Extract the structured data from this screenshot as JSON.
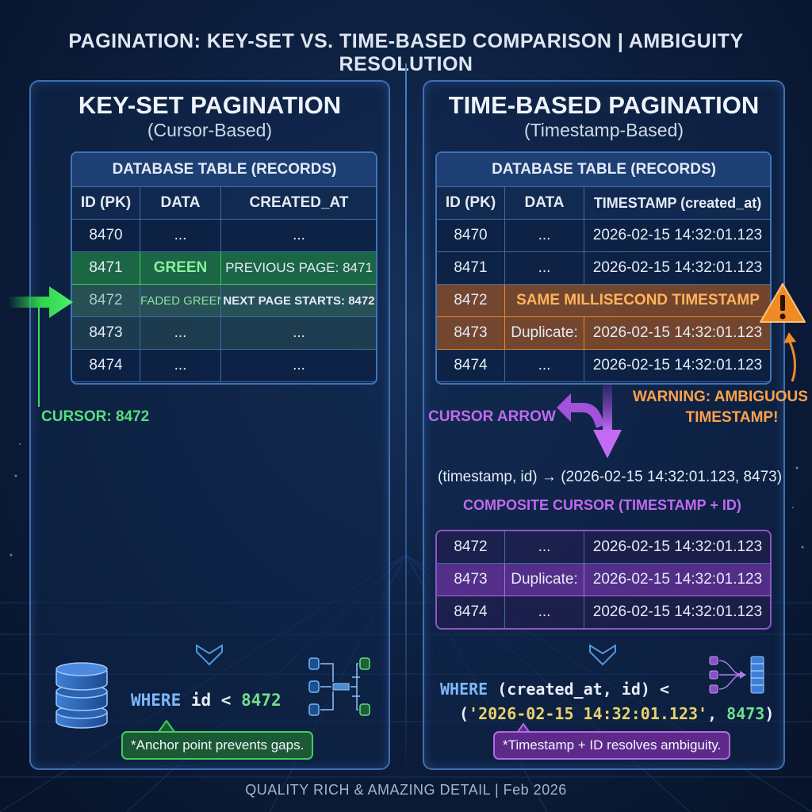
{
  "title": "PAGINATION: KEY-SET VS. TIME-BASED COMPARISON | AMBIGUITY RESOLUTION",
  "left": {
    "title": "KEY-SET PAGINATION",
    "subtitle": "(Cursor-Based)",
    "table_caption": "DATABASE TABLE (RECORDS)",
    "columns": [
      "ID (PK)",
      "DATA",
      "CREATED_AT"
    ],
    "rows": [
      [
        "8470",
        "...",
        "..."
      ],
      [
        "8471",
        "GREEN",
        "PREVIOUS PAGE: 8471"
      ],
      [
        "8472",
        "FADED GREEN",
        "NEXT PAGE STARTS: 8472"
      ],
      [
        "8473",
        "...",
        "..."
      ],
      [
        "8474",
        "...",
        "..."
      ]
    ],
    "cursor_label": "CURSOR: 8472",
    "query": {
      "kw": "WHERE",
      "expr": " id < ",
      "value": "8472"
    },
    "note": "*Anchor point prevents gaps."
  },
  "right": {
    "title": "TIME-BASED PAGINATION",
    "subtitle": "(Timestamp-Based)",
    "table_caption": "DATABASE TABLE (RECORDS)",
    "columns": [
      "ID (PK)",
      "DATA",
      "TIMESTAMP (created_at)"
    ],
    "rows": [
      [
        "8470",
        "...",
        "2026-02-15 14:32:01.123"
      ],
      [
        "8471",
        "...",
        "2026-02-15 14:32:01.123"
      ],
      [
        "8472",
        "SAME MILLISECOND TIMESTAMP"
      ],
      [
        "8473",
        "Duplicate:",
        "2026-02-15 14:32:01.123"
      ],
      [
        "8474",
        "...",
        "2026-02-15 14:32:01.123"
      ]
    ],
    "warning": [
      "WARNING: AMBIGUOUS",
      "TIMESTAMP!"
    ],
    "cursor_arrow_label": "CURSOR ARROW",
    "tuple_line": "(timestamp, id) → (2026-02-15 14:32:01.123, 8473)",
    "composite_label": "COMPOSITE CURSOR (TIMESTAMP + ID)",
    "result_rows": [
      [
        "8472",
        "...",
        "2026-02-15 14:32:01.123"
      ],
      [
        "8473",
        "Duplicate:",
        "2026-02-15 14:32:01.123"
      ],
      [
        "8474",
        "...",
        "2026-02-15 14:32:01.123"
      ]
    ],
    "query": {
      "kw": "WHERE",
      "line1_rest": " (created_at, id) <",
      "open": "(",
      "ts": "'2026-02-15 14:32:01.123'",
      "sep": ", ",
      "value": "8473",
      "close": ")"
    },
    "note": "*Timestamp + ID resolves ambiguity."
  },
  "footer": "QUALITY RICH & AMAZING DETAIL | Feb 2026",
  "colors": {
    "green": "#56e07a",
    "orange": "#ffa24a",
    "purple": "#c16af0",
    "blue_keyword": "#7fb8ff",
    "background": "#0c1d3c"
  },
  "icons": [
    "arrow-right-icon",
    "warning-icon",
    "database-icon",
    "flow-diagram-icon",
    "down-chevron-icon"
  ]
}
